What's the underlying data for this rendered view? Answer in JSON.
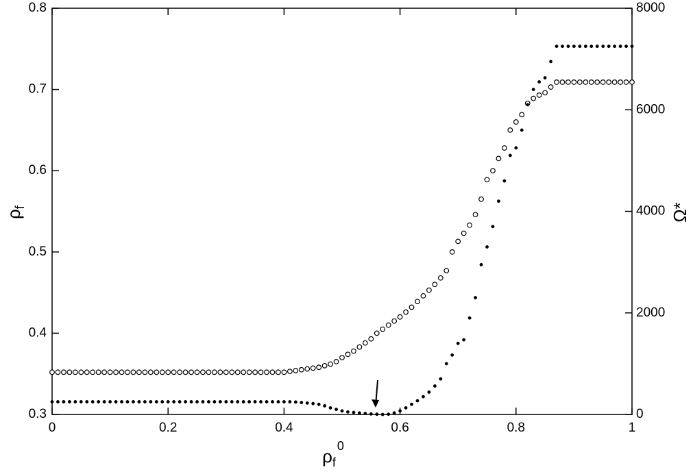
{
  "chart_data": {
    "type": "scatter",
    "x_label": {
      "base": "ρ",
      "sub": "f",
      "sup": "0"
    },
    "y_label": {
      "base": "ρ",
      "sub": "f"
    },
    "y2_label": "Ω*",
    "x": [
      0,
      0.01,
      0.02,
      0.03,
      0.04,
      0.05,
      0.06,
      0.07,
      0.08,
      0.09,
      0.1,
      0.11,
      0.12,
      0.13,
      0.14,
      0.15,
      0.16,
      0.17,
      0.18,
      0.19,
      0.2,
      0.21,
      0.22,
      0.23,
      0.24,
      0.25,
      0.26,
      0.27,
      0.28,
      0.29,
      0.3,
      0.31,
      0.32,
      0.33,
      0.34,
      0.35,
      0.36,
      0.37,
      0.38,
      0.39,
      0.4,
      0.41,
      0.42,
      0.43,
      0.44,
      0.45,
      0.46,
      0.47,
      0.48,
      0.49,
      0.5,
      0.51,
      0.52,
      0.53,
      0.54,
      0.55,
      0.56,
      0.57,
      0.58,
      0.59,
      0.6,
      0.61,
      0.62,
      0.63,
      0.64,
      0.65,
      0.66,
      0.67,
      0.68,
      0.69,
      0.7,
      0.71,
      0.72,
      0.73,
      0.74,
      0.75,
      0.76,
      0.77,
      0.78,
      0.79,
      0.8,
      0.81,
      0.82,
      0.83,
      0.84,
      0.85,
      0.86,
      0.87,
      0.88,
      0.89,
      0.9,
      0.91,
      0.92,
      0.93,
      0.94,
      0.95,
      0.96,
      0.97,
      0.98,
      0.99,
      1
    ],
    "series": [
      {
        "color": "#000000",
        "marker": "open",
        "values": [
          0.352,
          0.352,
          0.352,
          0.352,
          0.352,
          0.352,
          0.352,
          0.352,
          0.352,
          0.352,
          0.352,
          0.352,
          0.352,
          0.352,
          0.352,
          0.352,
          0.352,
          0.352,
          0.352,
          0.352,
          0.352,
          0.352,
          0.352,
          0.352,
          0.352,
          0.352,
          0.352,
          0.352,
          0.352,
          0.352,
          0.352,
          0.352,
          0.352,
          0.352,
          0.352,
          0.352,
          0.352,
          0.352,
          0.352,
          0.352,
          0.352,
          0.353,
          0.354,
          0.355,
          0.356,
          0.357,
          0.358,
          0.36,
          0.362,
          0.365,
          0.37,
          0.374,
          0.378,
          0.383,
          0.388,
          0.393,
          0.4,
          0.405,
          0.41,
          0.415,
          0.42,
          0.426,
          0.432,
          0.439,
          0.446,
          0.453,
          0.46,
          0.468,
          0.477,
          0.5,
          0.513,
          0.523,
          0.533,
          0.546,
          0.565,
          0.589,
          0.6,
          0.615,
          0.628,
          0.65,
          0.66,
          0.669,
          0.683,
          0.689,
          0.693,
          0.696,
          0.703,
          0.709,
          0.709,
          0.709,
          0.709,
          0.709,
          0.709,
          0.709,
          0.709,
          0.709,
          0.709,
          0.709,
          0.709,
          0.709,
          0.709
        ]
      },
      {
        "color": "#000000",
        "marker": "filled",
        "axis": "y2",
        "values": [
          250,
          250,
          250,
          250,
          250,
          250,
          250,
          250,
          250,
          250,
          250,
          250,
          250,
          250,
          250,
          250,
          250,
          250,
          250,
          250,
          250,
          250,
          250,
          250,
          250,
          250,
          250,
          250,
          250,
          250,
          250,
          250,
          250,
          250,
          250,
          250,
          250,
          250,
          250,
          250,
          250,
          250,
          245,
          235,
          225,
          215,
          200,
          170,
          130,
          100,
          70,
          50,
          40,
          30,
          20,
          10,
          5,
          0,
          5,
          30,
          70,
          130,
          200,
          270,
          350,
          440,
          560,
          700,
          1000,
          1170,
          1400,
          1470,
          1900,
          2300,
          2950,
          3300,
          3700,
          4200,
          4600,
          5100,
          5250,
          5600,
          6100,
          6400,
          6550,
          6630,
          6950,
          7250,
          7250,
          7250,
          7250,
          7250,
          7250,
          7250,
          7250,
          7250,
          7250,
          7250,
          7250,
          7250,
          7250
        ]
      }
    ],
    "xlim": [
      0,
      1
    ],
    "xticks": [
      0,
      0.2,
      0.4,
      0.6,
      0.8,
      1
    ],
    "ylim": [
      0.3,
      0.8
    ],
    "yticks": [
      0.3,
      0.4,
      0.5,
      0.6,
      0.7,
      0.8
    ],
    "y2lim": [
      0,
      8000
    ],
    "y2ticks": [
      0,
      2000,
      4000,
      6000,
      8000
    ],
    "grid": false
  }
}
